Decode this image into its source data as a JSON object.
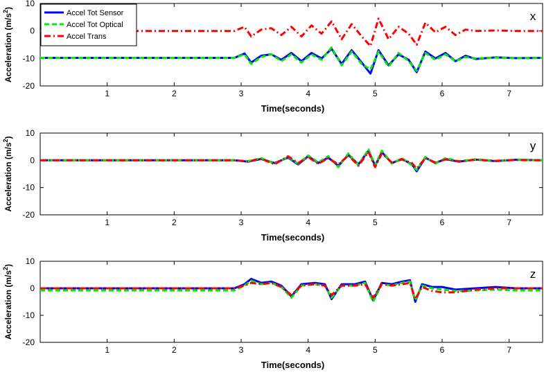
{
  "chart_data": [
    {
      "type": "line",
      "panel_label": "x",
      "xlabel": "Time(seconds)",
      "ylabel": "Acceleration (m/s",
      "ylabel_sup": "2",
      "ylabel_close": ")",
      "xlim": [
        0,
        7.5
      ],
      "ylim": [
        -20,
        10
      ],
      "xticks": [
        1,
        2,
        3,
        4,
        5,
        6,
        7
      ],
      "yticks": [
        -20,
        -10,
        0,
        10
      ],
      "grid": false,
      "legend_position": "top-left",
      "legend": [
        "Accel Tot Sensor",
        "Accel Tot Optical",
        "Accel Trans"
      ],
      "series": [
        {
          "name": "Accel Tot Sensor",
          "color": "#0000ff",
          "style": "solid",
          "x": [
            0,
            0.5,
            1,
            1.5,
            2,
            2.5,
            2.9,
            3.05,
            3.15,
            3.3,
            3.45,
            3.6,
            3.75,
            3.9,
            4.05,
            4.2,
            4.35,
            4.5,
            4.65,
            4.8,
            4.93,
            5.05,
            5.2,
            5.35,
            5.5,
            5.62,
            5.75,
            5.9,
            6.05,
            6.2,
            6.35,
            6.5,
            6.8,
            7.1,
            7.5
          ],
          "y": [
            -9.8,
            -9.8,
            -9.8,
            -9.8,
            -9.8,
            -9.8,
            -9.8,
            -8.2,
            -11.5,
            -9,
            -8.5,
            -10.5,
            -8,
            -11,
            -8,
            -10,
            -6.5,
            -12,
            -7,
            -11.5,
            -15.5,
            -7,
            -12.5,
            -8.5,
            -10.5,
            -15,
            -7.5,
            -10,
            -8,
            -11,
            -9,
            -10.2,
            -9.6,
            -9.9,
            -9.8
          ]
        },
        {
          "name": "Accel Tot Optical",
          "color": "#00ee00",
          "style": "dashed",
          "x": [
            0,
            0.5,
            1,
            1.5,
            2,
            2.5,
            2.9,
            3.05,
            3.15,
            3.3,
            3.45,
            3.6,
            3.75,
            3.9,
            4.05,
            4.2,
            4.35,
            4.5,
            4.65,
            4.8,
            4.93,
            5.05,
            5.2,
            5.35,
            5.5,
            5.62,
            5.75,
            5.9,
            6.05,
            6.2,
            6.35,
            6.5,
            6.8,
            7.1,
            7.5
          ],
          "y": [
            -9.8,
            -9.8,
            -9.8,
            -9.8,
            -9.8,
            -9.8,
            -9.8,
            -8.5,
            -12,
            -9.5,
            -8.5,
            -11,
            -8.5,
            -11.5,
            -8.5,
            -10.5,
            -6,
            -12.5,
            -7.5,
            -12,
            -14,
            -7.5,
            -13,
            -8,
            -11,
            -14.5,
            -8,
            -10.5,
            -8.5,
            -11,
            -9.5,
            -10,
            -9.7,
            -9.9,
            -9.8
          ]
        },
        {
          "name": "Accel Trans",
          "color": "#ff0000",
          "style": "dashdot",
          "x": [
            0,
            0.5,
            1,
            1.5,
            2,
            2.5,
            2.9,
            3.05,
            3.15,
            3.3,
            3.45,
            3.6,
            3.75,
            3.9,
            4.05,
            4.2,
            4.35,
            4.5,
            4.65,
            4.8,
            4.93,
            5.05,
            5.2,
            5.35,
            5.5,
            5.62,
            5.75,
            5.9,
            6.05,
            6.2,
            6.35,
            6.5,
            6.8,
            7.1,
            7.5
          ],
          "y": [
            0,
            0,
            0,
            0,
            0,
            0,
            0,
            1.5,
            -2,
            0.5,
            1,
            -1.5,
            1.5,
            -2,
            2,
            -1,
            3.5,
            -3,
            2.5,
            -2,
            -5.5,
            4.5,
            -3,
            1.5,
            -1,
            -5,
            3,
            -0.5,
            1.5,
            -1.5,
            0.5,
            0,
            0.2,
            0,
            0
          ]
        }
      ]
    },
    {
      "type": "line",
      "panel_label": "y",
      "xlabel": "Time(seconds)",
      "ylabel": "Acceleration (m/s",
      "ylabel_sup": "2",
      "ylabel_close": ")",
      "xlim": [
        0,
        7.5
      ],
      "ylim": [
        -20,
        10
      ],
      "xticks": [
        1,
        2,
        3,
        4,
        5,
        6,
        7
      ],
      "yticks": [
        -20,
        -10,
        0,
        10
      ],
      "grid": false,
      "series": [
        {
          "name": "Accel Tot Sensor",
          "color": "#0000ff",
          "style": "solid",
          "x": [
            0,
            0.5,
            1,
            1.5,
            2,
            2.5,
            2.9,
            3.1,
            3.3,
            3.5,
            3.7,
            3.85,
            4,
            4.15,
            4.3,
            4.45,
            4.6,
            4.75,
            4.9,
            5.0,
            5.1,
            5.25,
            5.4,
            5.55,
            5.62,
            5.75,
            5.9,
            6.05,
            6.25,
            6.5,
            6.8,
            7.1,
            7.5
          ],
          "y": [
            0,
            0,
            0,
            0,
            0,
            0,
            0,
            -0.5,
            0.5,
            -1,
            1,
            -1.5,
            1.5,
            -1,
            1,
            -2,
            2,
            -1.5,
            3.5,
            -2,
            3,
            -1,
            0.5,
            -1.5,
            -4,
            1,
            -1,
            0.5,
            -0.5,
            0.3,
            -0.3,
            0.2,
            0
          ]
        },
        {
          "name": "Accel Tot Optical",
          "color": "#00ee00",
          "style": "dashed",
          "x": [
            0,
            0.5,
            1,
            1.5,
            2,
            2.5,
            2.9,
            3.1,
            3.3,
            3.5,
            3.7,
            3.85,
            4,
            4.15,
            4.3,
            4.45,
            4.6,
            4.75,
            4.9,
            5.0,
            5.1,
            5.25,
            5.4,
            5.55,
            5.62,
            5.75,
            5.9,
            6.05,
            6.25,
            6.5,
            6.8,
            7.1,
            7.5
          ],
          "y": [
            0,
            0,
            0,
            0,
            0,
            0,
            0,
            -0.3,
            0.8,
            -1.2,
            1.2,
            -1.2,
            1.8,
            -0.8,
            1.5,
            -2.5,
            2.5,
            -1.8,
            4,
            -1.8,
            3.5,
            -1.2,
            0.8,
            -1.8,
            -3.5,
            1.2,
            -1.2,
            0.8,
            -0.3,
            0.4,
            -0.2,
            0.3,
            0
          ]
        },
        {
          "name": "Accel Trans",
          "color": "#ff0000",
          "style": "dashdot",
          "x": [
            0,
            0.5,
            1,
            1.5,
            2,
            2.5,
            2.9,
            3.1,
            3.3,
            3.5,
            3.7,
            3.85,
            4,
            4.15,
            4.3,
            4.45,
            4.6,
            4.75,
            4.9,
            5.0,
            5.1,
            5.25,
            5.4,
            5.55,
            5.62,
            5.75,
            5.9,
            6.05,
            6.25,
            6.5,
            6.8,
            7.1,
            7.5
          ],
          "y": [
            0,
            0,
            0,
            0,
            0,
            0,
            0,
            -0.4,
            0.6,
            -1.5,
            1.5,
            -1,
            1.2,
            -1.3,
            0.8,
            -1.5,
            1.8,
            -2,
            3,
            -2.5,
            2.5,
            -0.8,
            0.3,
            -1,
            -3,
            0.8,
            -0.8,
            0.3,
            -0.4,
            0.2,
            -0.2,
            0.1,
            0
          ]
        }
      ]
    },
    {
      "type": "line",
      "panel_label": "z",
      "xlabel": "Time(seconds)",
      "ylabel": "Acceleration (m/s",
      "ylabel_sup": "2",
      "ylabel_close": ")",
      "xlim": [
        0,
        7.5
      ],
      "ylim": [
        -20,
        10
      ],
      "xticks": [
        1,
        2,
        3,
        4,
        5,
        6,
        7
      ],
      "yticks": [
        -20,
        -10,
        0,
        10
      ],
      "grid": false,
      "series": [
        {
          "name": "Accel Tot Sensor",
          "color": "#0000ff",
          "style": "solid",
          "x": [
            0,
            0.5,
            1,
            1.5,
            2,
            2.5,
            2.9,
            3.05,
            3.15,
            3.3,
            3.45,
            3.6,
            3.75,
            3.9,
            4.1,
            4.25,
            4.35,
            4.5,
            4.7,
            4.85,
            4.97,
            5.1,
            5.25,
            5.4,
            5.52,
            5.6,
            5.7,
            5.85,
            6.0,
            6.2,
            6.5,
            6.8,
            7.1,
            7.5
          ],
          "y": [
            0,
            0,
            0,
            0,
            0,
            0,
            0,
            1.5,
            3.5,
            2,
            2.5,
            1,
            -3,
            1.5,
            2,
            1.5,
            -4,
            1.5,
            1.5,
            2.5,
            -4.5,
            2,
            1.5,
            2.5,
            3,
            -5,
            1.5,
            0.5,
            0.5,
            -0.5,
            0,
            0.5,
            0,
            0
          ]
        },
        {
          "name": "Accel Tot Optical",
          "color": "#00ee00",
          "style": "dashed",
          "x": [
            0,
            0.5,
            1,
            1.5,
            2,
            2.5,
            2.9,
            3.05,
            3.15,
            3.3,
            3.45,
            3.6,
            3.75,
            3.9,
            4.1,
            4.25,
            4.35,
            4.5,
            4.7,
            4.85,
            4.97,
            5.1,
            5.25,
            5.4,
            5.52,
            5.6,
            5.7,
            5.85,
            6.0,
            6.2,
            6.5,
            6.8,
            7.1,
            7.5
          ],
          "y": [
            -0.8,
            -0.8,
            -0.8,
            -0.8,
            -0.8,
            -0.8,
            -0.8,
            1,
            2.8,
            1.5,
            2,
            0.5,
            -3.5,
            1,
            1.5,
            1,
            -3.5,
            1,
            1,
            2,
            -5,
            1.5,
            1,
            2,
            2.5,
            -4.5,
            1,
            0,
            -0.5,
            -1,
            -0.8,
            -0.5,
            -0.8,
            -0.8
          ]
        },
        {
          "name": "Accel Trans",
          "color": "#ff0000",
          "style": "dashdot",
          "x": [
            0,
            0.5,
            1,
            1.5,
            2,
            2.5,
            2.9,
            3.05,
            3.15,
            3.3,
            3.45,
            3.6,
            3.75,
            3.9,
            4.1,
            4.25,
            4.35,
            4.5,
            4.7,
            4.85,
            4.97,
            5.1,
            5.25,
            5.4,
            5.52,
            5.6,
            5.7,
            5.85,
            6.0,
            6.2,
            6.5,
            6.8,
            7.1,
            7.5
          ],
          "y": [
            0,
            0,
            0,
            0,
            0,
            0,
            0,
            1,
            2,
            1.5,
            2,
            0.5,
            -2.5,
            1,
            1.5,
            1,
            -2.5,
            1,
            1,
            1.5,
            -3.5,
            1.5,
            1,
            1.5,
            2,
            -4,
            0.5,
            -1,
            -1.5,
            -1.5,
            -0.5,
            0,
            0,
            0
          ]
        }
      ]
    }
  ]
}
